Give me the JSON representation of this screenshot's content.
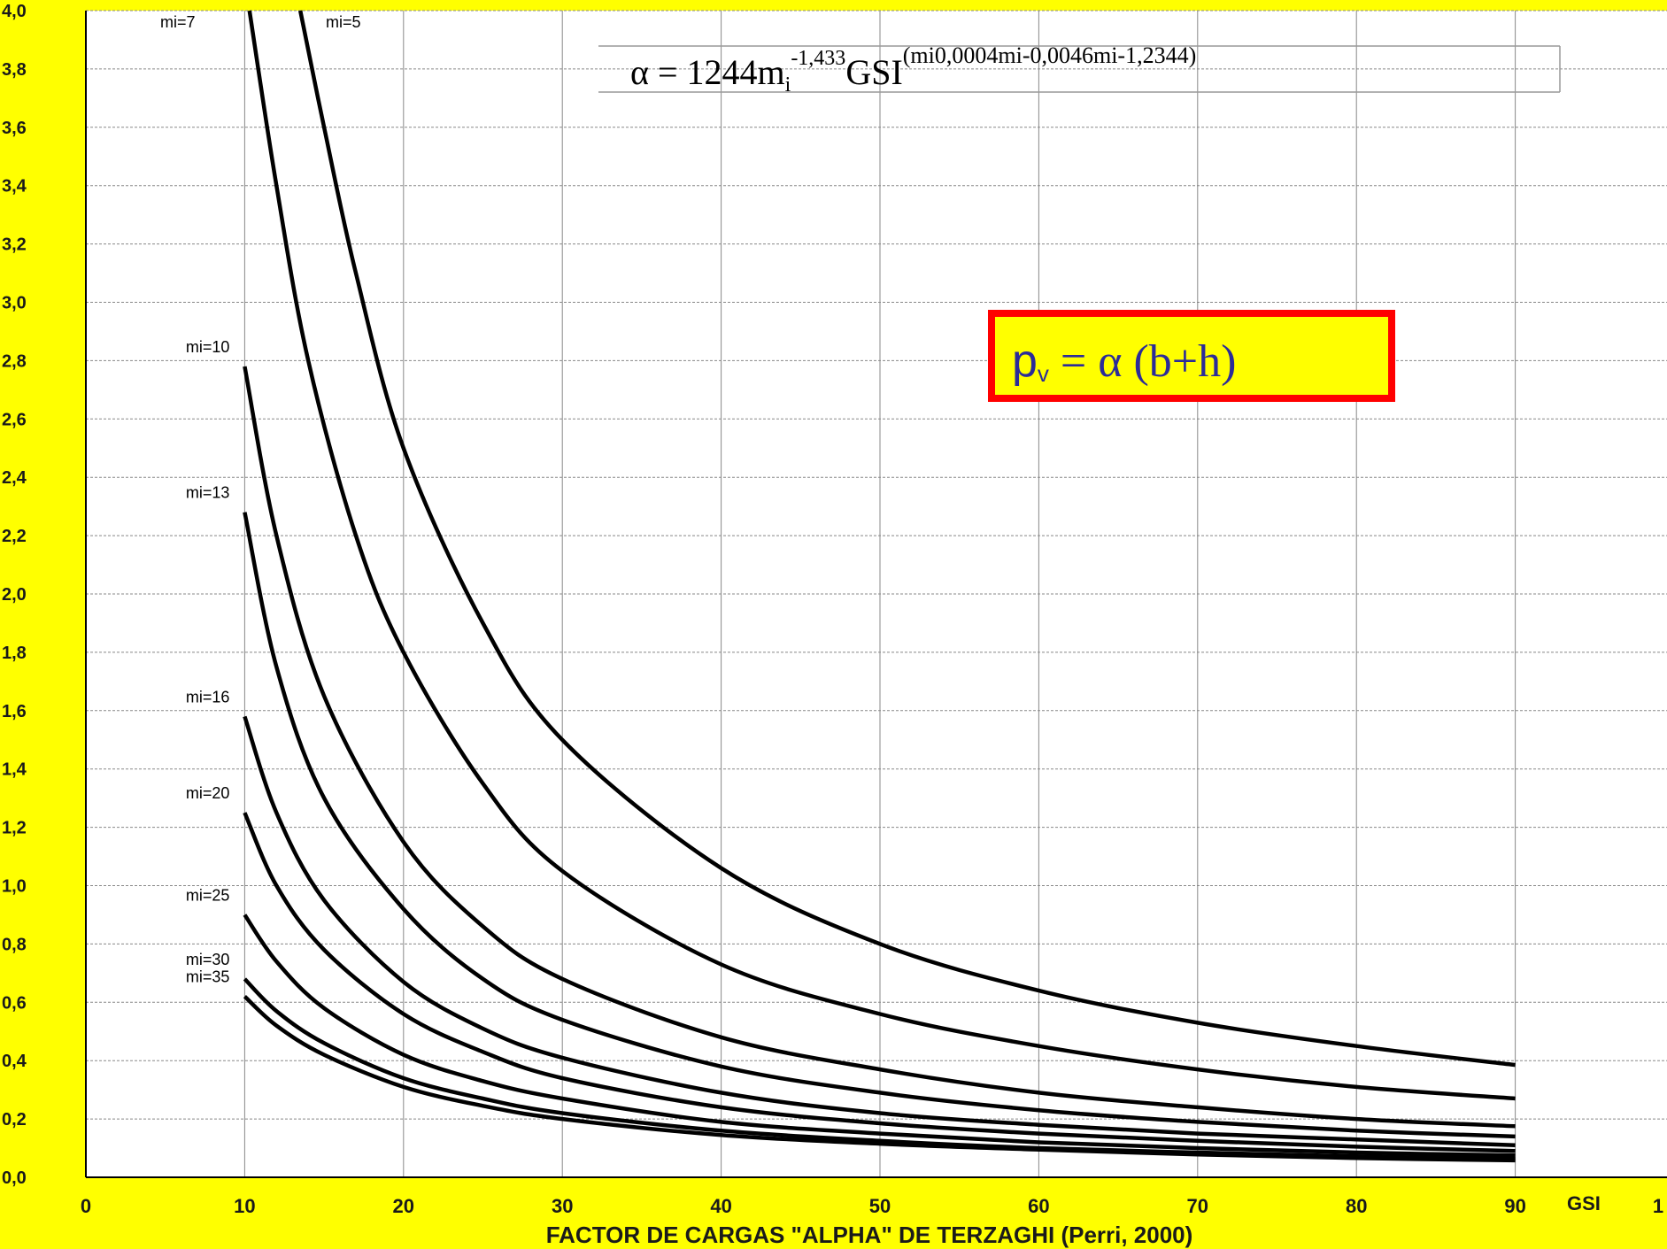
{
  "chart_data": {
    "type": "line",
    "title": "",
    "xlabel": "FACTOR DE CARGAS \"ALPHA\" DE TERZAGHI  (Perri, 2000)",
    "xaxis_name": "GSI",
    "ylabel": "",
    "xlim": [
      0,
      100
    ],
    "ylim": [
      0,
      4
    ],
    "grid": true,
    "x_ticks": [
      "0",
      "10",
      "20",
      "30",
      "40",
      "50",
      "60",
      "70",
      "80",
      "90",
      "1"
    ],
    "y_ticks": [
      "0,0",
      "0,2",
      "0,4",
      "0,6",
      "0,8",
      "1,0",
      "1,2",
      "1,4",
      "1,6",
      "1,8",
      "2,0",
      "2,2",
      "2,4",
      "2,6",
      "2,8",
      "3,0",
      "3,2",
      "3,4",
      "3,6",
      "3,8",
      "4,0"
    ],
    "formula": {
      "lhs": "α = 1244m",
      "sub": "i",
      "exp1": "-1,433",
      "mid": "GSI",
      "exp2": "(mi0,0004mi-0,0046mi-1,2344)"
    },
    "annotation": {
      "text": "p",
      "sub": "v",
      "rest": " = α (b+h)",
      "border_color": "#FF0000",
      "fill_color": "#FFFF00"
    },
    "series": [
      {
        "name": "mi=5",
        "x": [
          13.5,
          15,
          17,
          20,
          25,
          30,
          40,
          50,
          60,
          70,
          80,
          90
        ],
        "y": [
          4.0,
          3.6,
          3.1,
          2.5,
          1.9,
          1.5,
          1.06,
          0.8,
          0.64,
          0.53,
          0.45,
          0.385
        ]
      },
      {
        "name": "mi=7",
        "x": [
          10.3,
          12,
          14,
          17,
          20,
          25,
          30,
          40,
          50,
          60,
          70,
          80,
          90
        ],
        "y": [
          4.0,
          3.4,
          2.8,
          2.2,
          1.8,
          1.35,
          1.05,
          0.73,
          0.56,
          0.45,
          0.37,
          0.31,
          0.27
        ]
      },
      {
        "name": "mi=10",
        "x": [
          10,
          12,
          15,
          20,
          25,
          30,
          40,
          50,
          60,
          70,
          80,
          90
        ],
        "y": [
          2.78,
          2.2,
          1.65,
          1.15,
          0.86,
          0.68,
          0.48,
          0.37,
          0.29,
          0.24,
          0.2,
          0.175
        ]
      },
      {
        "name": "mi=13",
        "x": [
          10,
          12,
          15,
          20,
          25,
          30,
          40,
          50,
          60,
          70,
          80,
          90
        ],
        "y": [
          2.28,
          1.75,
          1.3,
          0.92,
          0.68,
          0.54,
          0.38,
          0.29,
          0.23,
          0.19,
          0.16,
          0.14
        ]
      },
      {
        "name": "mi=16",
        "x": [
          10,
          12,
          15,
          20,
          25,
          30,
          40,
          50,
          60,
          70,
          80,
          90
        ],
        "y": [
          1.58,
          1.25,
          0.95,
          0.67,
          0.51,
          0.41,
          0.29,
          0.22,
          0.18,
          0.15,
          0.13,
          0.11
        ]
      },
      {
        "name": "mi=20",
        "x": [
          10,
          12,
          15,
          20,
          25,
          30,
          40,
          50,
          60,
          70,
          80,
          90
        ],
        "y": [
          1.25,
          1.0,
          0.78,
          0.56,
          0.43,
          0.34,
          0.24,
          0.185,
          0.15,
          0.125,
          0.105,
          0.09
        ]
      },
      {
        "name": "mi=25",
        "x": [
          10,
          12,
          15,
          20,
          25,
          30,
          40,
          50,
          60,
          70,
          80,
          90
        ],
        "y": [
          0.9,
          0.74,
          0.58,
          0.42,
          0.33,
          0.27,
          0.19,
          0.15,
          0.12,
          0.1,
          0.085,
          0.075
        ]
      },
      {
        "name": "mi=30",
        "x": [
          10,
          12,
          15,
          20,
          25,
          30,
          40,
          50,
          60,
          70,
          80,
          90
        ],
        "y": [
          0.68,
          0.57,
          0.46,
          0.34,
          0.27,
          0.22,
          0.16,
          0.125,
          0.1,
          0.085,
          0.072,
          0.063
        ]
      },
      {
        "name": "mi=35",
        "x": [
          10,
          12,
          15,
          20,
          25,
          30,
          40,
          50,
          60,
          70,
          80,
          90
        ],
        "y": [
          0.62,
          0.52,
          0.42,
          0.31,
          0.245,
          0.2,
          0.145,
          0.115,
          0.095,
          0.078,
          0.066,
          0.058
        ]
      }
    ],
    "labels": [
      {
        "text": "mi=7",
        "series": "mi=7"
      },
      {
        "text": "mi=5",
        "series": "mi=5"
      },
      {
        "text": "mi=10",
        "series": "mi=10"
      },
      {
        "text": "mi=13",
        "series": "mi=13"
      },
      {
        "text": "mi=16",
        "series": "mi=16"
      },
      {
        "text": "mi=20",
        "series": "mi=20"
      },
      {
        "text": "mi=25",
        "series": "mi=25"
      },
      {
        "text": "mi=30",
        "series": "mi=30"
      },
      {
        "text": "mi=35",
        "series": "mi=35"
      }
    ],
    "colors": {
      "background": "#FFFF00",
      "plot_area": "#FFFFFF",
      "grid": "#888888",
      "curve": "#000000"
    }
  }
}
